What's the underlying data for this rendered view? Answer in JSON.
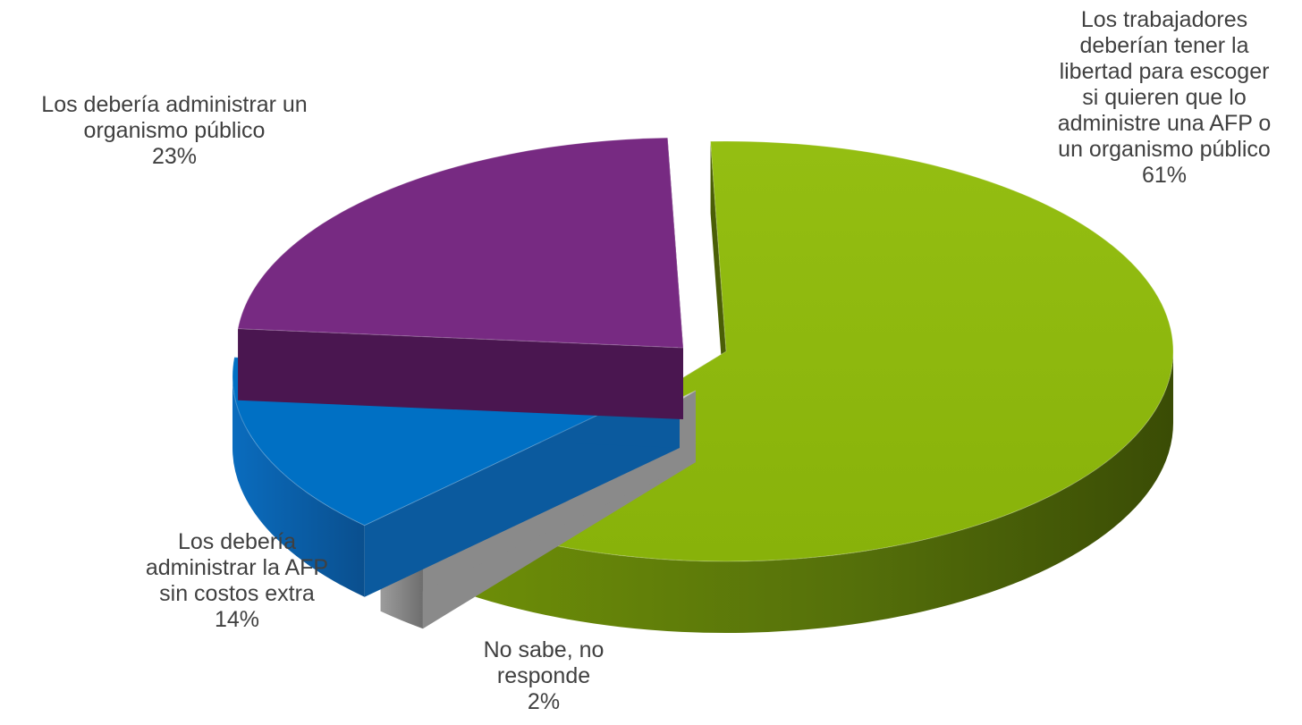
{
  "chart_data": {
    "type": "pie",
    "title": "",
    "slices": [
      {
        "label": "Los trabajadores deberían tener la libertad para escoger si quieren que lo administre una AFP o un organismo público",
        "label_lines": [
          "Los trabajadores",
          "deberían tener la",
          "libertad para escoger",
          "si quieren que lo",
          "administre una AFP o",
          "un organismo público"
        ],
        "value": 61,
        "value_label": "61%",
        "color": "#8DB70C"
      },
      {
        "label": "No sabe, no responde",
        "label_lines": [
          "No sabe, no",
          "responde"
        ],
        "value": 2,
        "value_label": "2%",
        "color": "#BDBDBD"
      },
      {
        "label": "Los debería administrar la AFP sin costos extra",
        "label_lines": [
          "Los debería",
          "administrar la AFP",
          "sin costos extra"
        ],
        "value": 14,
        "value_label": "14%",
        "color": "#0070C4"
      },
      {
        "label": "Los debería administrar un organismo público",
        "label_lines": [
          "Los debería administrar un",
          "organismo público"
        ],
        "value": 23,
        "value_label": "23%",
        "color": "#772A82"
      }
    ],
    "legend": "none",
    "style": "3d-exploded"
  }
}
